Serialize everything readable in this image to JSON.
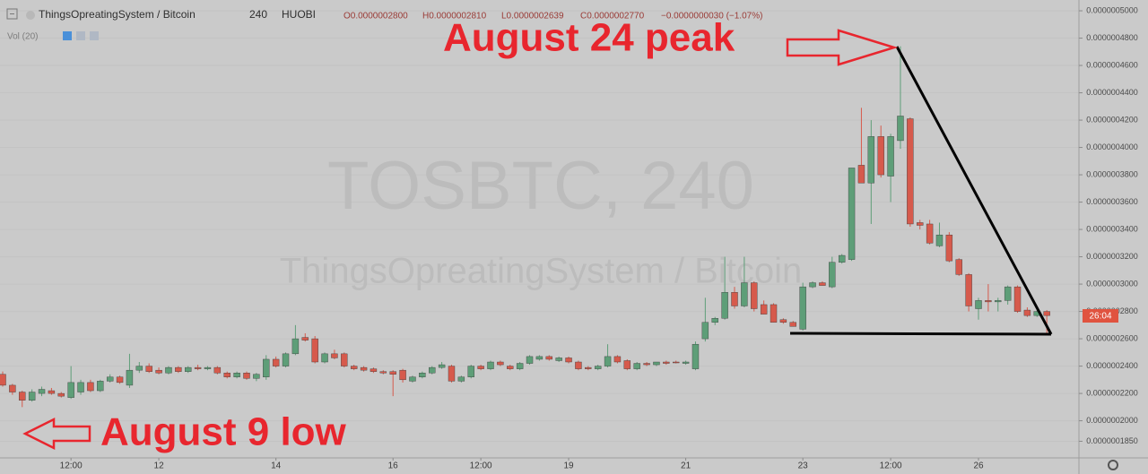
{
  "chart_data": {
    "type": "candlestick",
    "title": "ThingsOpreatingSystem / Bitcoin",
    "interval": "240",
    "exchange": "HUOBI",
    "legend": {
      "open": "O0.0000002800",
      "high": "H0.0000002810",
      "low": "L0.0000002639",
      "close": "C0.0000002770",
      "change": "−0.0000000030 (−1.07%)"
    },
    "indicator": "Vol (20)",
    "watermark": {
      "symbol": "TOSBTC, 240",
      "name": "ThingsOpreatingSystem / Bitcoin"
    },
    "annotations": [
      "August 24 peak",
      "August 9 low"
    ],
    "countdown": "26:04",
    "up_color": "#5e9e78",
    "down_color": "#d65a4c",
    "grid": true,
    "ylim": [
      1.735e-07,
      5.079e-07
    ],
    "yticks": [
      {
        "value": 5e-07,
        "label": "0.0000005000"
      },
      {
        "value": 4.8e-07,
        "label": "0.0000004800"
      },
      {
        "value": 4.6e-07,
        "label": "0.0000004600"
      },
      {
        "value": 4.4e-07,
        "label": "0.0000004400"
      },
      {
        "value": 4.2e-07,
        "label": "0.0000004200"
      },
      {
        "value": 4e-07,
        "label": "0.0000004000"
      },
      {
        "value": 3.8e-07,
        "label": "0.0000003800"
      },
      {
        "value": 3.6e-07,
        "label": "0.0000003600"
      },
      {
        "value": 3.4e-07,
        "label": "0.0000003400"
      },
      {
        "value": 3.2e-07,
        "label": "0.0000003200"
      },
      {
        "value": 3e-07,
        "label": "0.0000003000"
      },
      {
        "value": 2.8e-07,
        "label": "0.0000002800"
      },
      {
        "value": 2.6e-07,
        "label": "0.0000002600"
      },
      {
        "value": 2.4e-07,
        "label": "0.0000002400"
      },
      {
        "value": 2.2e-07,
        "label": "0.0000002200"
      },
      {
        "value": 2e-07,
        "label": "0.0000002000"
      },
      {
        "value": 1.85e-07,
        "label": "0.0000001850"
      }
    ],
    "categories": [
      null,
      null,
      null,
      null,
      null,
      null,
      null,
      "12:00",
      null,
      null,
      null,
      null,
      null,
      null,
      null,
      null,
      "12",
      null,
      null,
      null,
      null,
      null,
      null,
      null,
      null,
      null,
      null,
      null,
      "14",
      null,
      null,
      null,
      null,
      null,
      null,
      null,
      null,
      null,
      null,
      null,
      "16",
      null,
      null,
      null,
      null,
      null,
      null,
      null,
      null,
      "12:00",
      null,
      null,
      null,
      null,
      null,
      null,
      null,
      null,
      "19",
      null,
      null,
      null,
      null,
      null,
      null,
      null,
      null,
      null,
      null,
      null,
      "21",
      null,
      null,
      null,
      null,
      null,
      null,
      null,
      null,
      null,
      null,
      null,
      "23",
      null,
      null,
      null,
      null,
      null,
      null,
      null,
      null,
      "12:00",
      null,
      null,
      null,
      null,
      null,
      null,
      null,
      null,
      "26",
      null,
      null,
      null,
      null,
      null,
      null,
      null
    ],
    "open": [
      2.34e-07,
      2.26e-07,
      2.21e-07,
      2.15e-07,
      2.2e-07,
      2.22e-07,
      2.2e-07,
      2.17e-07,
      2.21e-07,
      2.28e-07,
      2.22e-07,
      2.29e-07,
      2.32e-07,
      2.26e-07,
      2.37e-07,
      2.4e-07,
      2.37e-07,
      2.35e-07,
      2.39e-07,
      2.36e-07,
      2.39e-07,
      2.38e-07,
      2.39e-07,
      2.35e-07,
      2.32e-07,
      2.35e-07,
      2.31e-07,
      2.32e-07,
      2.45e-07,
      2.4e-07,
      2.49e-07,
      2.61e-07,
      2.6e-07,
      2.43e-07,
      2.49e-07,
      2.49e-07,
      2.4e-07,
      2.39e-07,
      2.38e-07,
      2.36e-07,
      2.36e-07,
      2.37e-07,
      2.29e-07,
      2.32e-07,
      2.35e-07,
      2.39e-07,
      2.4e-07,
      2.29e-07,
      2.32e-07,
      2.4e-07,
      2.38e-07,
      2.43e-07,
      2.4e-07,
      2.38e-07,
      2.42e-07,
      2.45e-07,
      2.47e-07,
      2.44e-07,
      2.46e-07,
      2.43e-07,
      2.39e-07,
      2.38e-07,
      2.4e-07,
      2.47e-07,
      2.44e-07,
      2.38e-07,
      2.42e-07,
      2.41e-07,
      2.43e-07,
      2.43e-07,
      2.42e-07,
      2.38e-07,
      2.6e-07,
      2.72e-07,
      2.75e-07,
      2.94e-07,
      2.84e-07,
      3.01e-07,
      2.85e-07,
      2.85e-07,
      2.74e-07,
      2.72e-07,
      2.67e-07,
      2.98e-07,
      3.01e-07,
      2.98e-07,
      3.16e-07,
      3.18e-07,
      3.87e-07,
      3.74e-07,
      4.08e-07,
      3.79e-07,
      4.05e-07,
      4.21e-07,
      3.45e-07,
      3.44e-07,
      3.28e-07,
      3.36e-07,
      3.18e-07,
      3.07e-07,
      2.82e-07,
      2.88e-07,
      2.87e-07,
      2.88e-07,
      2.98e-07,
      2.81e-07,
      2.77e-07,
      2.8e-07
    ],
    "high": [
      2.36e-07,
      2.27e-07,
      2.22e-07,
      2.23e-07,
      2.25e-07,
      2.24e-07,
      2.21e-07,
      2.4e-07,
      2.3e-07,
      2.3e-07,
      2.3e-07,
      2.34e-07,
      2.33e-07,
      2.49e-07,
      2.43e-07,
      2.42e-07,
      2.39e-07,
      2.4e-07,
      2.4e-07,
      2.4e-07,
      2.41e-07,
      2.4e-07,
      2.4e-07,
      2.36e-07,
      2.36e-07,
      2.36e-07,
      2.35e-07,
      2.48e-07,
      2.47e-07,
      2.5e-07,
      2.7e-07,
      2.64e-07,
      2.62e-07,
      2.5e-07,
      2.52e-07,
      2.5e-07,
      2.41e-07,
      2.4e-07,
      2.39e-07,
      2.37e-07,
      2.37e-07,
      2.38e-07,
      2.33e-07,
      2.36e-07,
      2.4e-07,
      2.43e-07,
      2.41e-07,
      2.33e-07,
      2.41e-07,
      2.41e-07,
      2.44e-07,
      2.44e-07,
      2.41e-07,
      2.43e-07,
      2.48e-07,
      2.48e-07,
      2.48e-07,
      2.47e-07,
      2.47e-07,
      2.44e-07,
      2.4e-07,
      2.41e-07,
      2.56e-07,
      2.48e-07,
      2.45e-07,
      2.43e-07,
      2.43e-07,
      2.43e-07,
      2.44e-07,
      2.44e-07,
      2.44e-07,
      2.58e-07,
      2.9e-07,
      2.76e-07,
      3.2e-07,
      2.98e-07,
      3.2e-07,
      3.02e-07,
      2.88e-07,
      2.86e-07,
      2.75e-07,
      2.73e-07,
      3.01e-07,
      3.02e-07,
      3.02e-07,
      3.2e-07,
      3.22e-07,
      3.85e-07,
      4.29e-07,
      4.2e-07,
      4.16e-07,
      4.1e-07,
      4.74e-07,
      4.22e-07,
      3.47e-07,
      3.47e-07,
      3.45e-07,
      3.38e-07,
      3.19e-07,
      3.08e-07,
      2.9e-07,
      3e-07,
      2.9e-07,
      2.99e-07,
      2.99e-07,
      2.83e-07,
      2.83e-07,
      2.81e-07
    ],
    "low": [
      2.25e-07,
      2.19e-07,
      2.1e-07,
      2.14e-07,
      2.18e-07,
      2.19e-07,
      2.17e-07,
      2.16e-07,
      2.19e-07,
      2.21e-07,
      2.21e-07,
      2.28e-07,
      2.27e-07,
      2.24e-07,
      2.35e-07,
      2.35e-07,
      2.34e-07,
      2.34e-07,
      2.35e-07,
      2.35e-07,
      2.37e-07,
      2.37e-07,
      2.34e-07,
      2.31e-07,
      2.31e-07,
      2.3e-07,
      2.29e-07,
      2.3e-07,
      2.39e-07,
      2.39e-07,
      2.48e-07,
      2.58e-07,
      2.42e-07,
      2.42e-07,
      2.45e-07,
      2.39e-07,
      2.37e-07,
      2.36e-07,
      2.35e-07,
      2.34e-07,
      2.18e-07,
      2.28e-07,
      2.28e-07,
      2.31e-07,
      2.34e-07,
      2.38e-07,
      2.28e-07,
      2.28e-07,
      2.31e-07,
      2.37e-07,
      2.37e-07,
      2.4e-07,
      2.37e-07,
      2.37e-07,
      2.41e-07,
      2.44e-07,
      2.44e-07,
      2.43e-07,
      2.42e-07,
      2.37e-07,
      2.37e-07,
      2.37e-07,
      2.39e-07,
      2.42e-07,
      2.37e-07,
      2.37e-07,
      2.4e-07,
      2.4e-07,
      2.41e-07,
      2.42e-07,
      2.41e-07,
      2.37e-07,
      2.58e-07,
      2.7e-07,
      2.74e-07,
      2.82e-07,
      2.83e-07,
      2.8e-07,
      2.78e-07,
      2.72e-07,
      2.71e-07,
      2.69e-07,
      2.66e-07,
      2.97e-07,
      2.99e-07,
      2.97e-07,
      3.15e-07,
      3.17e-07,
      3.75e-07,
      3.44e-07,
      3.78e-07,
      3.6e-07,
      3.99e-07,
      3.42e-07,
      3.4e-07,
      3.29e-07,
      3.27e-07,
      3.16e-07,
      3.06e-07,
      2.8e-07,
      2.74e-07,
      2.8e-07,
      2.8e-07,
      2.85e-07,
      2.79e-07,
      2.76e-07,
      2.76e-07,
      2.639e-07
    ],
    "close": [
      2.26e-07,
      2.21e-07,
      2.15e-07,
      2.21e-07,
      2.23e-07,
      2.2e-07,
      2.18e-07,
      2.28e-07,
      2.28e-07,
      2.22e-07,
      2.29e-07,
      2.32e-07,
      2.28e-07,
      2.37e-07,
      2.4e-07,
      2.36e-07,
      2.35e-07,
      2.39e-07,
      2.36e-07,
      2.39e-07,
      2.38e-07,
      2.39e-07,
      2.35e-07,
      2.32e-07,
      2.35e-07,
      2.31e-07,
      2.34e-07,
      2.45e-07,
      2.4e-07,
      2.49e-07,
      2.6e-07,
      2.59e-07,
      2.43e-07,
      2.49e-07,
      2.46e-07,
      2.4e-07,
      2.38e-07,
      2.37e-07,
      2.36e-07,
      2.35e-07,
      2.34e-07,
      2.3e-07,
      2.32e-07,
      2.35e-07,
      2.39e-07,
      2.41e-07,
      2.29e-07,
      2.32e-07,
      2.4e-07,
      2.38e-07,
      2.43e-07,
      2.41e-07,
      2.38e-07,
      2.42e-07,
      2.47e-07,
      2.47e-07,
      2.45e-07,
      2.46e-07,
      2.43e-07,
      2.38e-07,
      2.38e-07,
      2.4e-07,
      2.47e-07,
      2.43e-07,
      2.38e-07,
      2.42e-07,
      2.41e-07,
      2.43e-07,
      2.42e-07,
      2.425e-07,
      2.43e-07,
      2.56e-07,
      2.72e-07,
      2.75e-07,
      2.94e-07,
      2.84e-07,
      3.01e-07,
      2.82e-07,
      2.78e-07,
      2.72e-07,
      2.72e-07,
      2.69e-07,
      2.98e-07,
      3.01e-07,
      2.99e-07,
      3.16e-07,
      3.21e-07,
      3.85e-07,
      3.74e-07,
      4.08e-07,
      3.8e-07,
      4.08e-07,
      4.23e-07,
      3.44e-07,
      3.43e-07,
      3.3e-07,
      3.36e-07,
      3.17e-07,
      3.07e-07,
      2.84e-07,
      2.88e-07,
      2.87e-07,
      2.88e-07,
      2.98e-07,
      2.8e-07,
      2.77e-07,
      2.8e-07,
      2.77e-07
    ]
  }
}
